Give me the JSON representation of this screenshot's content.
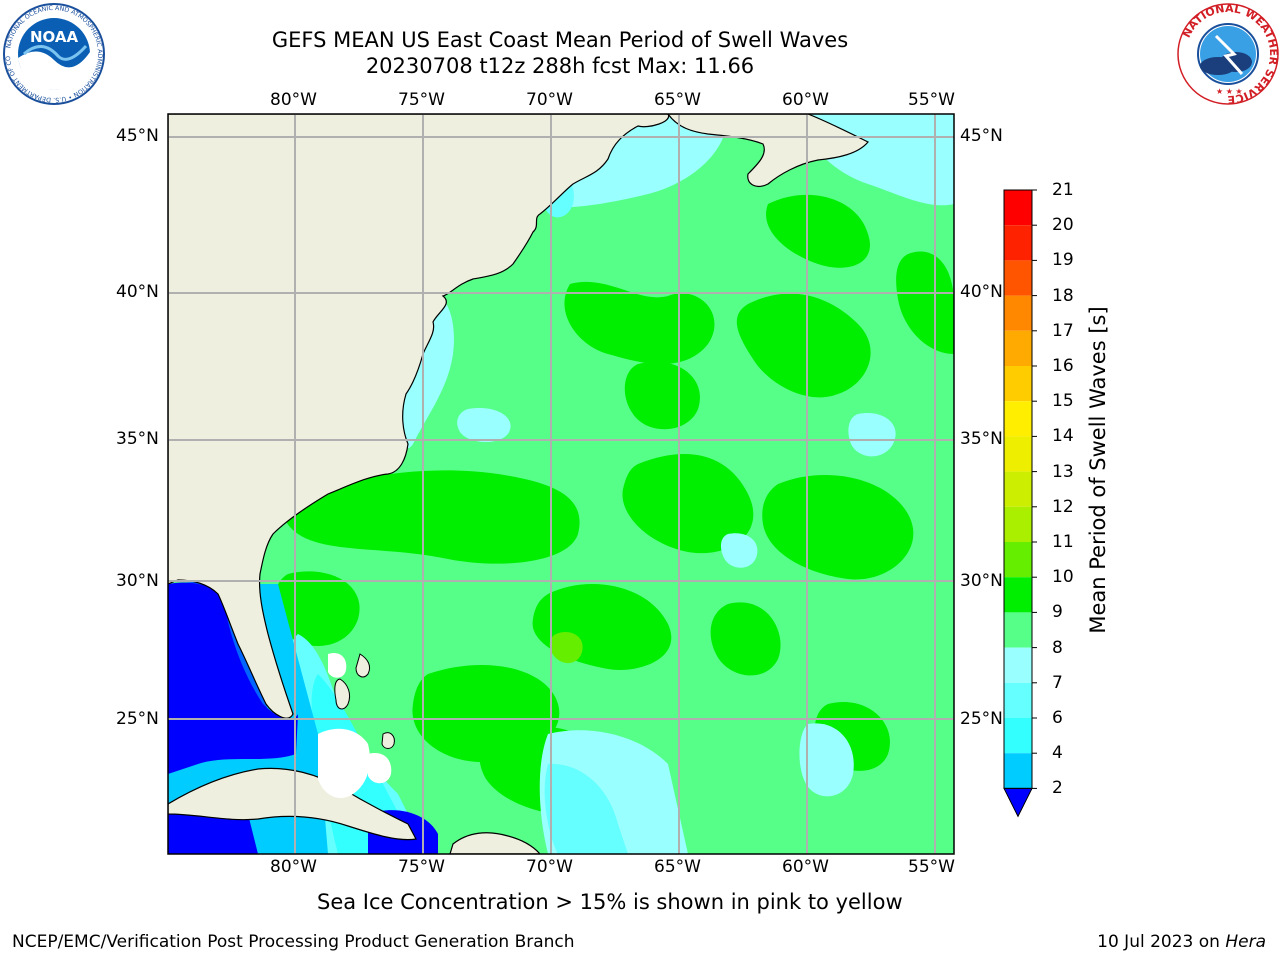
{
  "title": {
    "line1": "GEFS MEAN US East Coast Mean Period of Swell Waves",
    "line2": "20230708 t12z 288h fcst   Max: 11.66"
  },
  "map": {
    "lon_labels": [
      "80°W",
      "75°W",
      "70°W",
      "65°W",
      "60°W",
      "55°W"
    ],
    "lat_labels": [
      "45°N",
      "40°N",
      "35°N",
      "30°N",
      "25°N"
    ],
    "land_color": "#efefdf",
    "grid_color": "#b0b0b0"
  },
  "colorbar": {
    "title": "Mean Period of Swell Waves [s]",
    "levels": [
      "2",
      "4",
      "6",
      "7",
      "8",
      "9",
      "10",
      "11",
      "12",
      "13",
      "14",
      "15",
      "16",
      "17",
      "18",
      "19",
      "20",
      "21"
    ],
    "colors": [
      "#0066ff",
      "#00ccff",
      "#33ffff",
      "#66ffff",
      "#99ffff",
      "#55ff88",
      "#00ee00",
      "#66ee00",
      "#aaee00",
      "#ccee00",
      "#eeee00",
      "#ffee00",
      "#ffcc00",
      "#ffaa00",
      "#ff8800",
      "#ff5500",
      "#ff2200",
      "#ff0000"
    ],
    "under_color": "#0000ff"
  },
  "logos": {
    "noaa_text": "NOAA",
    "noaa_ring": "NATIONAL OCEANIC AND ATMOSPHERIC ADMINISTRATION • U.S. DEPARTMENT OF COMMERCE",
    "nws_ring": "NATIONAL WEATHER SERVICE"
  },
  "footer": {
    "ice_note": "Sea Ice Concentration > 15% is shown in pink to yellow",
    "credit": "NCEP/EMC/Verification Post Processing Product Generation Branch",
    "date": "10 Jul 2023 on",
    "machine": "Hera"
  }
}
